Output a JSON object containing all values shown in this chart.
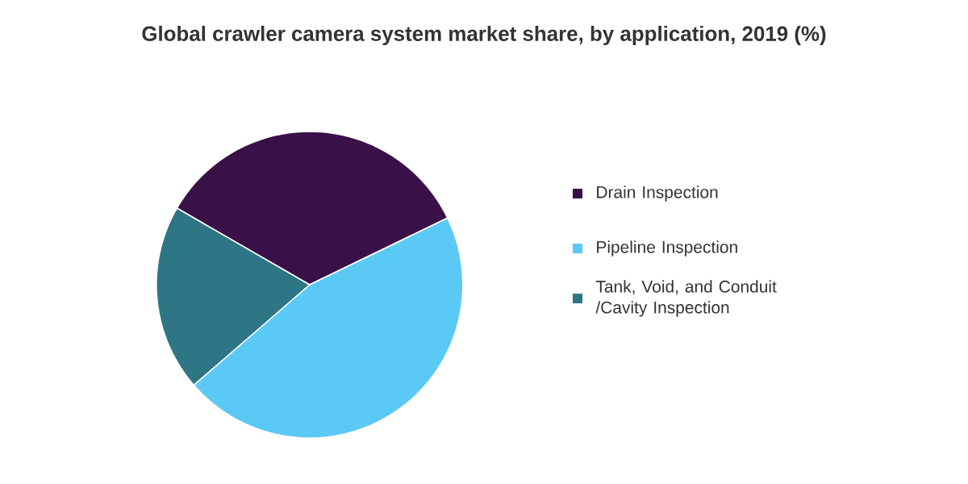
{
  "chart_data": {
    "type": "pie",
    "title": "Global crawler camera system market share, by application, 2019 (%)",
    "categories": [
      "Drain Inspection",
      "Pipeline Inspection",
      "Tank, Void, and Conduit /Cavity Inspection"
    ],
    "values": [
      34.5,
      45.8,
      19.7
    ],
    "colors": [
      "#3a1048",
      "#5bc9f5",
      "#2e7585"
    ],
    "legend": "right"
  }
}
